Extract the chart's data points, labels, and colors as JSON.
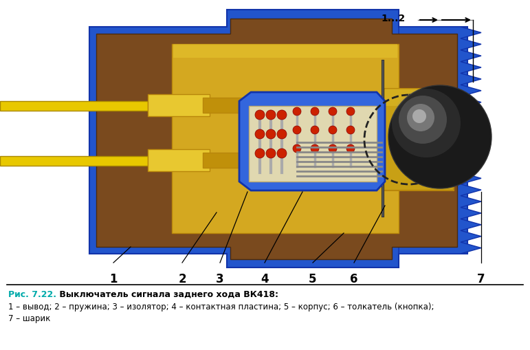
{
  "bg_color": "#ffffff",
  "dim_label": "1...2",
  "labels": [
    "1",
    "2",
    "3",
    "4",
    "5",
    "6",
    "7"
  ],
  "blue_body": "#2255cc",
  "blue_dark": "#1133aa",
  "blue_light": "#3366dd",
  "brown_body": "#7a4a1e",
  "brown_dark": "#4a2a0e",
  "gold_color": "#d4a820",
  "gold_light": "#e8c830",
  "gold_dark": "#b8860b",
  "yellow_wire": "#e8c800",
  "red_color": "#cc2200",
  "black_color": "#111111",
  "gray_color": "#888888",
  "title_prefix_color": "#00aaaa",
  "title_line1_prefix": "Рис. 7.22.",
  "title_line1_rest": " Выключатель сигнала заднего хода ВК418:",
  "title_line2": "1 – вывод; 2 – пружина; 3 – изолятор; 4 – контактная пластина; 5 – корпус; 6 – толкатель (кнопка);",
  "title_line3": "7 – шарик"
}
